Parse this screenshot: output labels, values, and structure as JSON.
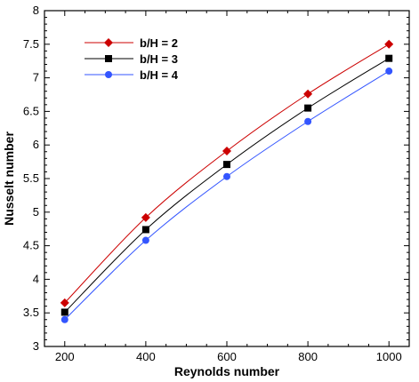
{
  "chart_data": {
    "type": "line",
    "xlabel": "Reynolds number",
    "ylabel": "Nusselt number",
    "xlim": [
      150,
      1050
    ],
    "ylim": [
      3,
      8
    ],
    "x_ticks": [
      200,
      400,
      600,
      800,
      1000
    ],
    "y_ticks": [
      3,
      3.5,
      4,
      4.5,
      5,
      5.5,
      6,
      6.5,
      7,
      7.5,
      8
    ],
    "y_tick_labels": [
      "3",
      "3.5",
      "4",
      "4.5",
      "5",
      "5.5",
      "6",
      "6.5",
      "7",
      "7.5",
      "8"
    ],
    "grid": false,
    "legend_position": "top-left",
    "series": [
      {
        "name": "b/H = 2",
        "color": "#cc0000",
        "marker": "diamond",
        "x": [
          200,
          400,
          600,
          800,
          1000
        ],
        "y": [
          3.65,
          4.92,
          5.91,
          6.76,
          7.5
        ]
      },
      {
        "name": "b/H = 3",
        "color": "#000000",
        "marker": "square",
        "x": [
          200,
          400,
          600,
          800,
          1000
        ],
        "y": [
          3.51,
          4.74,
          5.71,
          6.55,
          7.29
        ]
      },
      {
        "name": "b/H = 4",
        "color": "#3355ff",
        "marker": "circle",
        "x": [
          200,
          400,
          600,
          800,
          1000
        ],
        "y": [
          3.4,
          4.58,
          5.53,
          6.35,
          7.1
        ]
      }
    ]
  }
}
